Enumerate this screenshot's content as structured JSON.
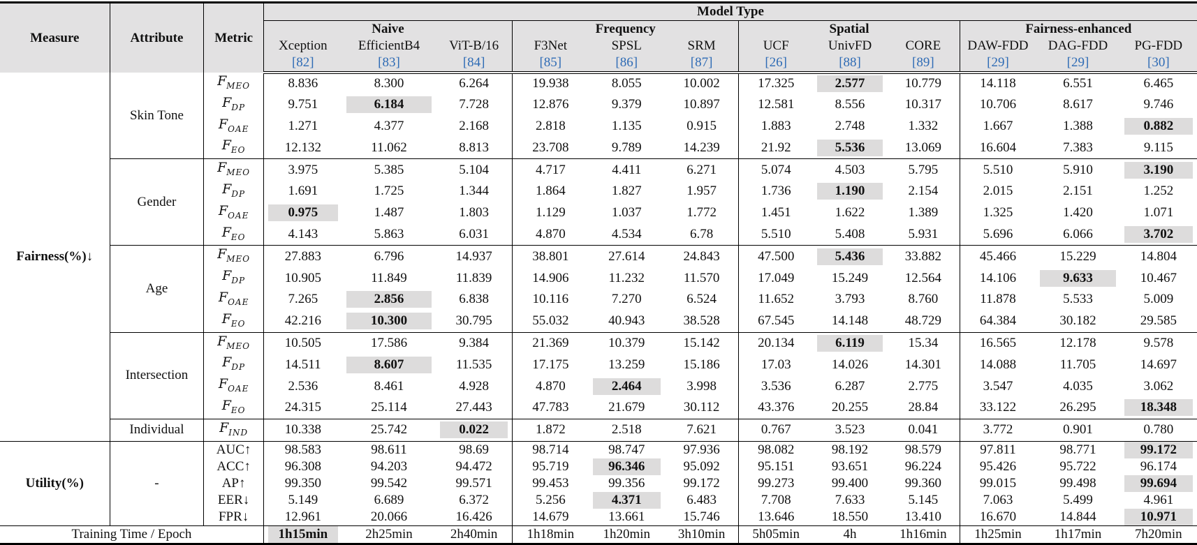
{
  "headers": {
    "measure": "Measure",
    "attribute": "Attribute",
    "metric": "Metric",
    "model_type": "Model Type",
    "groups": [
      "Naive",
      "Frequency",
      "Spatial",
      "Fairness-enhanced"
    ],
    "models": [
      "Xception",
      "EfficientB4",
      "ViT-B/16",
      "F3Net",
      "SPSL",
      "SRM",
      "UCF",
      "UnivFD",
      "CORE",
      "DAW-FDD",
      "DAG-FDD",
      "PG-FDD"
    ],
    "refs": [
      "[82]",
      "[83]",
      "[84]",
      "[85]",
      "[86]",
      "[87]",
      "[26]",
      "[88]",
      "[89]",
      "[29]",
      "[29]",
      "[30]"
    ]
  },
  "measures": {
    "fairness": "Fairness(%)↓",
    "utility": "Utility(%)",
    "training": "Training Time / Epoch"
  },
  "attributes": {
    "skin": "Skin Tone",
    "gender": "Gender",
    "age": "Age",
    "inter": "Intersection",
    "indiv": "Individual",
    "util": "-"
  },
  "metrics": {
    "meo": {
      "base": "F",
      "sub": "MEO"
    },
    "dp": {
      "base": "F",
      "sub": "DP"
    },
    "oae": {
      "base": "F",
      "sub": "OAE"
    },
    "eo": {
      "base": "F",
      "sub": "EO"
    },
    "ind": {
      "base": "F",
      "sub": "IND"
    },
    "auc": "AUC↑",
    "acc": "ACC↑",
    "ap": "AP↑",
    "eer": "EER↓",
    "fpr": "FPR↓"
  },
  "rows": {
    "skin_meo": [
      "8.836",
      "8.300",
      "6.264",
      "19.938",
      "8.055",
      "10.002",
      "17.325",
      "2.577",
      "10.779",
      "14.118",
      "6.551",
      "6.465"
    ],
    "skin_dp": [
      "9.751",
      "6.184",
      "7.728",
      "12.876",
      "9.379",
      "10.897",
      "12.581",
      "8.556",
      "10.317",
      "10.706",
      "8.617",
      "9.746"
    ],
    "skin_oae": [
      "1.271",
      "4.377",
      "2.168",
      "2.818",
      "1.135",
      "0.915",
      "1.883",
      "2.748",
      "1.332",
      "1.667",
      "1.388",
      "0.882"
    ],
    "skin_eo": [
      "12.132",
      "11.062",
      "8.813",
      "23.708",
      "9.789",
      "14.239",
      "21.92",
      "5.536",
      "13.069",
      "16.604",
      "7.383",
      "9.115"
    ],
    "gender_meo": [
      "3.975",
      "5.385",
      "5.104",
      "4.717",
      "4.411",
      "6.271",
      "5.074",
      "4.503",
      "5.795",
      "5.510",
      "5.910",
      "3.190"
    ],
    "gender_dp": [
      "1.691",
      "1.725",
      "1.344",
      "1.864",
      "1.827",
      "1.957",
      "1.736",
      "1.190",
      "2.154",
      "2.015",
      "2.151",
      "1.252"
    ],
    "gender_oae": [
      "0.975",
      "1.487",
      "1.803",
      "1.129",
      "1.037",
      "1.772",
      "1.451",
      "1.622",
      "1.389",
      "1.325",
      "1.420",
      "1.071"
    ],
    "gender_eo": [
      "4.143",
      "5.863",
      "6.031",
      "4.870",
      "4.534",
      "6.78",
      "5.510",
      "5.408",
      "5.931",
      "5.696",
      "6.066",
      "3.702"
    ],
    "age_meo": [
      "27.883",
      "6.796",
      "14.937",
      "38.801",
      "27.614",
      "24.843",
      "47.500",
      "5.436",
      "33.882",
      "45.466",
      "15.229",
      "14.804"
    ],
    "age_dp": [
      "10.905",
      "11.849",
      "11.839",
      "14.906",
      "11.232",
      "11.570",
      "17.049",
      "15.249",
      "12.564",
      "14.106",
      "9.633",
      "10.467"
    ],
    "age_oae": [
      "7.265",
      "2.856",
      "6.838",
      "10.116",
      "7.270",
      "6.524",
      "11.652",
      "3.793",
      "8.760",
      "11.878",
      "5.533",
      "5.009"
    ],
    "age_eo": [
      "42.216",
      "10.300",
      "30.795",
      "55.032",
      "40.943",
      "38.528",
      "67.545",
      "14.148",
      "48.729",
      "64.384",
      "30.182",
      "29.585"
    ],
    "inter_meo": [
      "10.505",
      "17.586",
      "9.384",
      "21.369",
      "10.379",
      "15.142",
      "20.134",
      "6.119",
      "15.34",
      "16.565",
      "12.178",
      "9.578"
    ],
    "inter_dp": [
      "14.511",
      "8.607",
      "11.535",
      "17.175",
      "13.259",
      "15.186",
      "17.03",
      "14.026",
      "14.301",
      "14.088",
      "11.705",
      "14.697"
    ],
    "inter_oae": [
      "2.536",
      "8.461",
      "4.928",
      "4.870",
      "2.464",
      "3.998",
      "3.536",
      "6.287",
      "2.775",
      "3.547",
      "4.035",
      "3.062"
    ],
    "inter_eo": [
      "24.315",
      "25.114",
      "27.443",
      "47.783",
      "21.679",
      "30.112",
      "43.376",
      "20.255",
      "28.84",
      "33.122",
      "26.295",
      "18.348"
    ],
    "indiv_ind": [
      "10.338",
      "25.742",
      "0.022",
      "1.872",
      "2.518",
      "7.621",
      "0.767",
      "3.523",
      "0.041",
      "3.772",
      "0.901",
      "0.780"
    ],
    "util_auc": [
      "98.583",
      "98.611",
      "98.69",
      "98.714",
      "98.747",
      "97.936",
      "98.082",
      "98.192",
      "98.579",
      "97.811",
      "98.771",
      "99.172"
    ],
    "util_acc": [
      "96.308",
      "94.203",
      "94.472",
      "95.719",
      "96.346",
      "95.092",
      "95.151",
      "93.651",
      "96.224",
      "95.426",
      "95.722",
      "96.174"
    ],
    "util_ap": [
      "99.350",
      "99.542",
      "99.571",
      "99.453",
      "99.356",
      "99.172",
      "99.273",
      "99.400",
      "99.360",
      "99.015",
      "99.498",
      "99.694"
    ],
    "util_eer": [
      "5.149",
      "6.689",
      "6.372",
      "5.256",
      "4.371",
      "6.483",
      "7.708",
      "7.633",
      "5.145",
      "7.063",
      "5.499",
      "4.961"
    ],
    "util_fpr": [
      "12.961",
      "20.066",
      "16.426",
      "14.679",
      "13.661",
      "15.746",
      "13.646",
      "18.550",
      "13.410",
      "16.670",
      "14.844",
      "10.971"
    ],
    "train": [
      "1h15min",
      "2h25min",
      "2h40min",
      "1h18min",
      "1h20min",
      "3h10min",
      "5h05min",
      "4h",
      "1h16min",
      "1h25min",
      "1h17min",
      "7h20min"
    ]
  },
  "highlights": {
    "skin_meo": 7,
    "skin_dp": 1,
    "skin_oae": 11,
    "skin_eo": 7,
    "gender_meo": 11,
    "gender_dp": 7,
    "gender_oae": 0,
    "gender_eo": 11,
    "age_meo": 7,
    "age_dp": 10,
    "age_oae": 1,
    "age_eo": 1,
    "inter_meo": 7,
    "inter_dp": 1,
    "inter_oae": 4,
    "inter_eo": 11,
    "indiv_ind": 2,
    "util_auc": 11,
    "util_acc": 4,
    "util_ap": 11,
    "util_eer": 4,
    "util_fpr": 11,
    "train": 0
  }
}
